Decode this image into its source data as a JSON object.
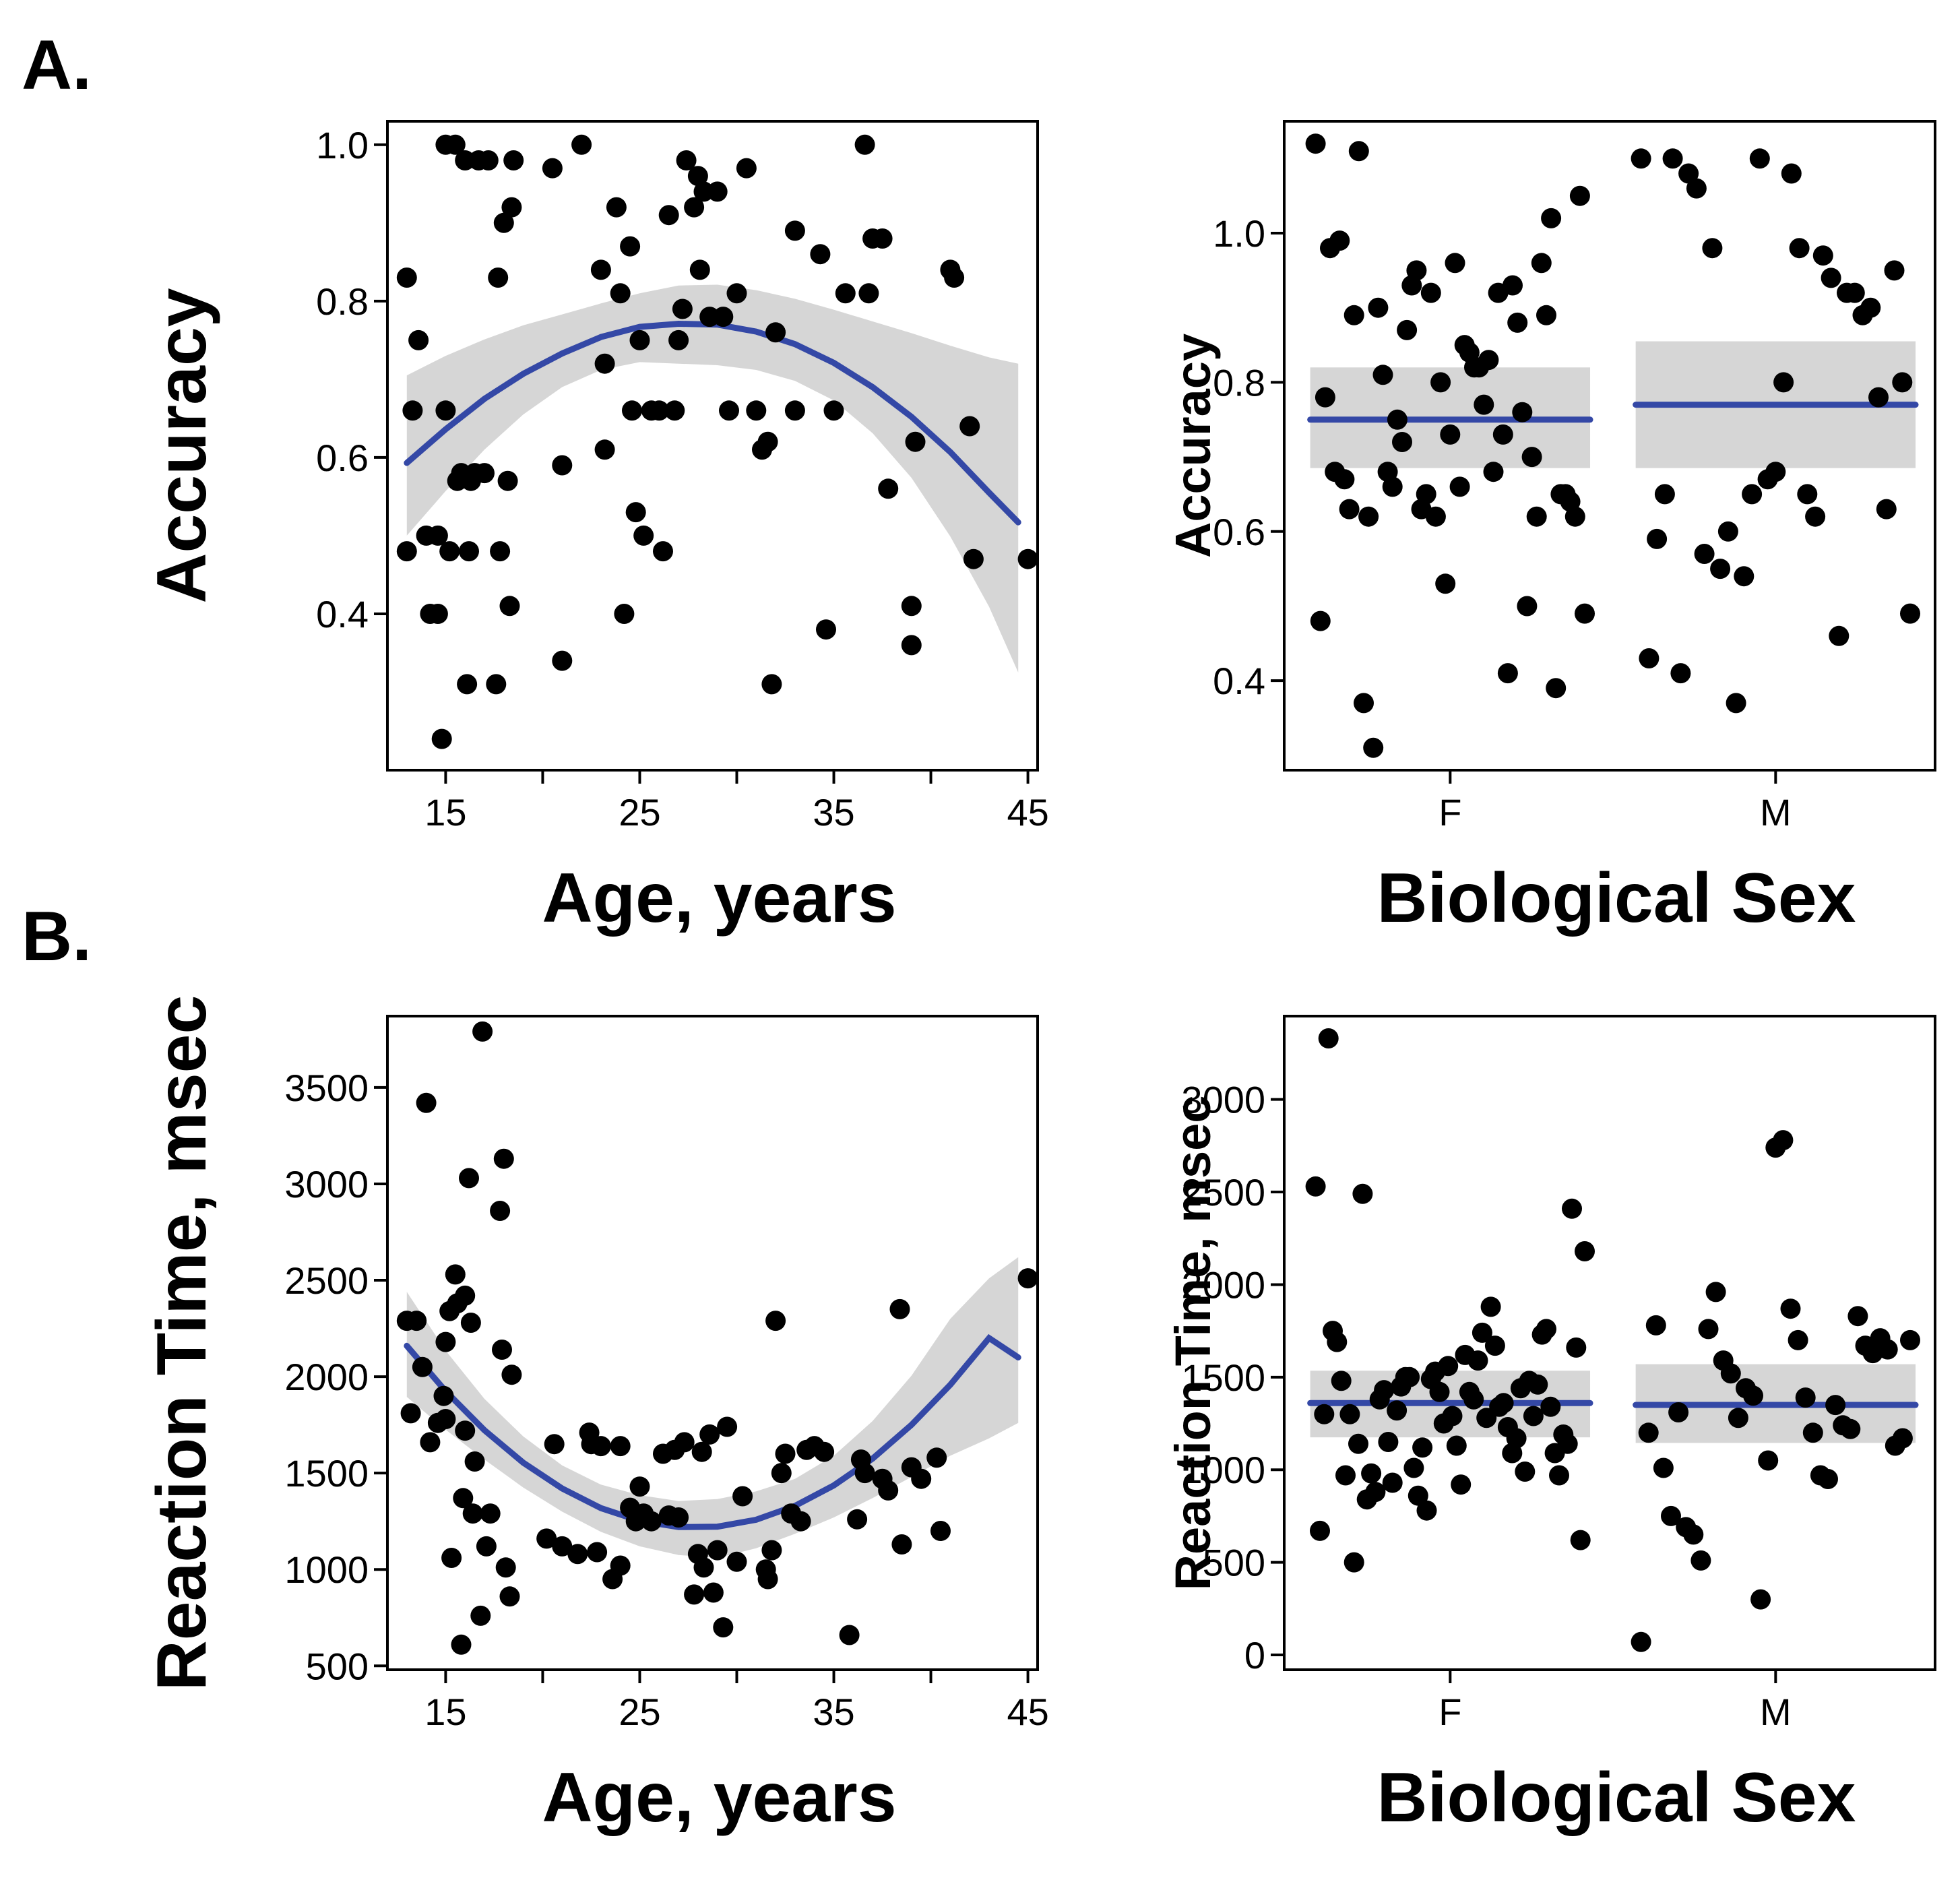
{
  "panel_labels": [
    "A.",
    "B."
  ],
  "chart_data": [
    {
      "id": "acc-age",
      "type": "scatter",
      "title": "",
      "xlabel": "Age, years",
      "ylabel": "Accuracy",
      "xlim": [
        12,
        45.5
      ],
      "ylim": [
        0.2,
        1.03
      ],
      "x_ticks": [
        15,
        25,
        35,
        45
      ],
      "x_minor_ticks": [
        20,
        30,
        40
      ],
      "y_ticks": [
        0.4,
        0.6,
        0.8,
        1.0
      ],
      "y_tick_labels": [
        "0.4",
        "0.6",
        "0.8",
        "1.0"
      ],
      "fit": {
        "type": "quadratic",
        "x": [
          13,
          15,
          17,
          19,
          21,
          23,
          25,
          27,
          29,
          31,
          33,
          35,
          37,
          39,
          41,
          43,
          44.5
        ],
        "y": [
          0.593,
          0.636,
          0.675,
          0.707,
          0.733,
          0.754,
          0.767,
          0.771,
          0.77,
          0.761,
          0.745,
          0.721,
          0.69,
          0.652,
          0.607,
          0.555,
          0.517
        ],
        "lower": [
          0.5,
          0.557,
          0.61,
          0.655,
          0.69,
          0.712,
          0.722,
          0.72,
          0.718,
          0.712,
          0.698,
          0.673,
          0.631,
          0.574,
          0.499,
          0.409,
          0.325
        ],
        "upper": [
          0.705,
          0.73,
          0.751,
          0.769,
          0.783,
          0.797,
          0.81,
          0.82,
          0.821,
          0.814,
          0.803,
          0.789,
          0.774,
          0.759,
          0.743,
          0.728,
          0.72
        ]
      },
      "points": [
        [
          13,
          0.83
        ],
        [
          13,
          0.48
        ],
        [
          13.3,
          0.66
        ],
        [
          13.6,
          0.75
        ],
        [
          14,
          0.5
        ],
        [
          14.2,
          0.4
        ],
        [
          14.6,
          0.5
        ],
        [
          14.6,
          0.4
        ],
        [
          14.8,
          0.24
        ],
        [
          15,
          1.0
        ],
        [
          15,
          0.66
        ],
        [
          15.2,
          0.48
        ],
        [
          15.5,
          1.0
        ],
        [
          15.6,
          0.57
        ],
        [
          15.8,
          0.58
        ],
        [
          16,
          0.98
        ],
        [
          16.1,
          0.31
        ],
        [
          16.2,
          0.48
        ],
        [
          16.3,
          0.57
        ],
        [
          16.5,
          0.58
        ],
        [
          16.7,
          0.98
        ],
        [
          17,
          0.58
        ],
        [
          17.2,
          0.98
        ],
        [
          17.6,
          0.31
        ],
        [
          17.7,
          0.83
        ],
        [
          17.8,
          0.48
        ],
        [
          18,
          0.9
        ],
        [
          18.2,
          0.57
        ],
        [
          18.3,
          0.41
        ],
        [
          18.4,
          0.92
        ],
        [
          18.5,
          0.98
        ],
        [
          20.5,
          0.97
        ],
        [
          21,
          0.34
        ],
        [
          21,
          0.59
        ],
        [
          22,
          1.0
        ],
        [
          23,
          0.84
        ],
        [
          23.2,
          0.72
        ],
        [
          23.2,
          0.61
        ],
        [
          23.8,
          0.92
        ],
        [
          24,
          0.81
        ],
        [
          24.2,
          0.4
        ],
        [
          24.5,
          0.87
        ],
        [
          24.6,
          0.66
        ],
        [
          24.8,
          0.53
        ],
        [
          25,
          0.75
        ],
        [
          25.2,
          0.5
        ],
        [
          25.6,
          0.66
        ],
        [
          26,
          0.66
        ],
        [
          26.2,
          0.48
        ],
        [
          26.5,
          0.91
        ],
        [
          26.8,
          0.66
        ],
        [
          27,
          0.75
        ],
        [
          27.2,
          0.79
        ],
        [
          27.4,
          0.98
        ],
        [
          27.8,
          0.92
        ],
        [
          28,
          0.96
        ],
        [
          28.1,
          0.84
        ],
        [
          28.3,
          0.94
        ],
        [
          28.6,
          0.78
        ],
        [
          29,
          0.94
        ],
        [
          29.3,
          0.78
        ],
        [
          29.6,
          0.66
        ],
        [
          30,
          0.81
        ],
        [
          30.5,
          0.97
        ],
        [
          31,
          0.66
        ],
        [
          31.3,
          0.61
        ],
        [
          31.6,
          0.62
        ],
        [
          31.8,
          0.31
        ],
        [
          32,
          0.76
        ],
        [
          33,
          0.89
        ],
        [
          33,
          0.66
        ],
        [
          34.3,
          0.86
        ],
        [
          34.6,
          0.38
        ],
        [
          35,
          0.66
        ],
        [
          35.6,
          0.81
        ],
        [
          36.6,
          1.0
        ],
        [
          36.8,
          0.81
        ],
        [
          37,
          0.88
        ],
        [
          37.5,
          0.88
        ],
        [
          37.8,
          0.56
        ],
        [
          39,
          0.41
        ],
        [
          39,
          0.36
        ],
        [
          39.2,
          0.62
        ],
        [
          41,
          0.84
        ],
        [
          41.2,
          0.83
        ],
        [
          42,
          0.64
        ],
        [
          42.2,
          0.47
        ],
        [
          45,
          0.47
        ]
      ]
    },
    {
      "id": "acc-sex",
      "type": "scatter",
      "title": "",
      "xlabel": "Biological Sex",
      "ylabel": "Accuracy",
      "categories": [
        "F",
        "M"
      ],
      "ylim": [
        0.28,
        1.15
      ],
      "y_ticks": [
        0.4,
        0.6,
        0.8,
        1.0
      ],
      "y_tick_labels": [
        "0.4",
        "0.6",
        "0.8",
        "1.0"
      ],
      "group_means": [
        {
          "category": "F",
          "mean": 0.75,
          "lower": 0.685,
          "upper": 0.82
        },
        {
          "category": "M",
          "mean": 0.77,
          "lower": 0.685,
          "upper": 0.855
        }
      ],
      "points": [
        {
          "category": "F",
          "values": [
            1.12,
            0.48,
            0.78,
            0.98,
            0.68,
            0.99,
            0.67,
            0.63,
            0.89,
            1.11,
            0.37,
            0.62,
            0.31,
            0.9,
            0.81,
            0.68,
            0.66,
            0.75,
            0.72,
            0.87,
            0.93,
            0.95,
            0.63,
            0.65,
            0.92,
            0.62,
            0.8,
            0.53,
            0.73,
            0.96,
            0.66,
            0.85,
            0.84,
            0.82,
            0.82,
            0.77,
            0.83,
            0.68,
            0.92,
            0.73,
            0.41,
            0.93,
            0.88,
            0.76,
            0.5,
            0.7,
            0.62,
            0.96,
            0.89,
            1.02,
            0.39,
            0.65,
            0.65,
            0.64,
            0.62,
            1.05,
            0.49
          ]
        },
        {
          "category": "M",
          "values": [
            1.1,
            0.43,
            0.59,
            0.65,
            1.1,
            0.41,
            1.08,
            1.06,
            0.57,
            0.98,
            0.55,
            0.6,
            0.37,
            0.54,
            0.65,
            1.1,
            0.67,
            0.68,
            0.8,
            1.08,
            0.98,
            0.65,
            0.62,
            0.97,
            0.94,
            0.46,
            0.92,
            0.92,
            0.89,
            0.9,
            0.78,
            0.63,
            0.95,
            0.8,
            0.49
          ]
        }
      ]
    },
    {
      "id": "rt-age",
      "type": "scatter",
      "title": "",
      "xlabel": "Age, years",
      "ylabel": "Reaction Time, msec",
      "xlim": [
        12,
        45.5
      ],
      "ylim": [
        480,
        3870
      ],
      "x_ticks": [
        15,
        25,
        35,
        45
      ],
      "x_minor_ticks": [
        20,
        30,
        40
      ],
      "y_ticks": [
        500,
        1000,
        1500,
        2000,
        2500,
        3000,
        3500
      ],
      "y_tick_labels": [
        "500",
        "1000",
        "1500",
        "2000",
        "2500",
        "3000",
        "3500"
      ],
      "fit": {
        "type": "quadratic",
        "x": [
          13,
          15,
          17,
          19,
          21,
          23,
          25,
          27,
          29,
          31,
          33,
          35,
          37,
          39,
          41,
          43,
          44.5
        ],
        "y": [
          2160,
          1925,
          1722,
          1554,
          1420,
          1318,
          1252,
          1220,
          1222,
          1258,
          1330,
          1436,
          1575,
          1750,
          1958,
          2200,
          2100
        ],
        "lower": [
          1895,
          1725,
          1570,
          1425,
          1300,
          1195,
          1120,
          1075,
          1060,
          1110,
          1185,
          1270,
          1370,
          1480,
          1590,
          1680,
          1760
        ],
        "upper": [
          2440,
          2135,
          1885,
          1690,
          1540,
          1440,
          1385,
          1355,
          1365,
          1405,
          1470,
          1590,
          1770,
          2005,
          2300,
          2510,
          2620
        ]
      },
      "points": [
        [
          13,
          2290
        ],
        [
          13.2,
          1810
        ],
        [
          13.5,
          2290
        ],
        [
          13.8,
          2050
        ],
        [
          14,
          3420
        ],
        [
          14.2,
          1660
        ],
        [
          14.6,
          1760
        ],
        [
          14.9,
          1900
        ],
        [
          15,
          2180
        ],
        [
          15,
          1780
        ],
        [
          15.2,
          2340
        ],
        [
          15.3,
          1060
        ],
        [
          15.5,
          2530
        ],
        [
          15.6,
          2380
        ],
        [
          15.8,
          610
        ],
        [
          15.9,
          1370
        ],
        [
          16,
          2420
        ],
        [
          16,
          1720
        ],
        [
          16.2,
          3030
        ],
        [
          16.3,
          2280
        ],
        [
          16.4,
          1290
        ],
        [
          16.5,
          1560
        ],
        [
          16.8,
          760
        ],
        [
          16.9,
          3790
        ],
        [
          17.1,
          1120
        ],
        [
          17.3,
          1290
        ],
        [
          17.8,
          2860
        ],
        [
          17.9,
          2140
        ],
        [
          18,
          3130
        ],
        [
          18.1,
          1010
        ],
        [
          18.3,
          860
        ],
        [
          18.4,
          2010
        ],
        [
          20.2,
          1160
        ],
        [
          20.6,
          1650
        ],
        [
          21,
          1120
        ],
        [
          21.8,
          1080
        ],
        [
          22.4,
          1710
        ],
        [
          22.5,
          1650
        ],
        [
          22.8,
          1090
        ],
        [
          23,
          1640
        ],
        [
          23.6,
          950
        ],
        [
          24,
          1020
        ],
        [
          24,
          1640
        ],
        [
          24.5,
          1320
        ],
        [
          24.8,
          1250
        ],
        [
          25,
          1430
        ],
        [
          25.2,
          1290
        ],
        [
          25.6,
          1250
        ],
        [
          26.2,
          1600
        ],
        [
          26.5,
          1280
        ],
        [
          26.8,
          1620
        ],
        [
          27,
          1270
        ],
        [
          27.3,
          1660
        ],
        [
          27.8,
          870
        ],
        [
          28,
          1080
        ],
        [
          28.2,
          1610
        ],
        [
          28.3,
          1010
        ],
        [
          28.6,
          1700
        ],
        [
          28.8,
          880
        ],
        [
          29,
          1100
        ],
        [
          29.3,
          700
        ],
        [
          29.5,
          1740
        ],
        [
          30,
          1040
        ],
        [
          30.3,
          1380
        ],
        [
          31.5,
          1000
        ],
        [
          31.6,
          950
        ],
        [
          31.8,
          1100
        ],
        [
          32,
          2290
        ],
        [
          32.3,
          1500
        ],
        [
          32.5,
          1600
        ],
        [
          32.8,
          1290
        ],
        [
          33.3,
          1250
        ],
        [
          33.6,
          1620
        ],
        [
          34,
          1640
        ],
        [
          34.5,
          1610
        ],
        [
          35.8,
          660
        ],
        [
          36.2,
          1260
        ],
        [
          36.4,
          1570
        ],
        [
          36.6,
          1500
        ],
        [
          37.5,
          1470
        ],
        [
          37.8,
          1410
        ],
        [
          38.4,
          2350
        ],
        [
          38.5,
          1130
        ],
        [
          39,
          1530
        ],
        [
          39.5,
          1470
        ],
        [
          40.3,
          1580
        ],
        [
          40.5,
          1200
        ],
        [
          45,
          2510
        ]
      ]
    },
    {
      "id": "rt-sex",
      "type": "scatter",
      "title": "",
      "xlabel": "Biological Sex",
      "ylabel": "Reaction Time, msec",
      "categories": [
        "F",
        "M"
      ],
      "ylim": [
        -80,
        3450
      ],
      "y_ticks": [
        0,
        500,
        1000,
        1500,
        2000,
        2500,
        3000
      ],
      "y_tick_labels": [
        "0",
        "500",
        "1000",
        "1500",
        "2000",
        "2500",
        "3000"
      ],
      "group_means": [
        {
          "category": "F",
          "mean": 1360,
          "lower": 1175,
          "upper": 1535
        },
        {
          "category": "M",
          "mean": 1350,
          "lower": 1145,
          "upper": 1570
        }
      ],
      "points": [
        {
          "category": "F",
          "values": [
            2530,
            670,
            1300,
            3330,
            1750,
            1690,
            1480,
            970,
            1300,
            500,
            1140,
            2490,
            840,
            980,
            880,
            1380,
            1430,
            1150,
            930,
            1320,
            1450,
            1500,
            1500,
            1010,
            860,
            1120,
            780,
            1490,
            1530,
            1420,
            1250,
            1560,
            1290,
            1130,
            920,
            1620,
            1420,
            1380,
            1590,
            1740,
            1280,
            1880,
            1670,
            1340,
            1360,
            1230,
            1090,
            1170,
            1440,
            990,
            1480,
            1290,
            1460,
            1730,
            1760,
            1340,
            1090,
            970,
            1190,
            1140,
            2410,
            1660,
            620,
            2180
          ]
        },
        {
          "category": "M",
          "values": [
            70,
            1200,
            1780,
            1010,
            750,
            1310,
            690,
            650,
            510,
            1760,
            1960,
            1590,
            1520,
            1280,
            1440,
            1400,
            300,
            1050,
            2740,
            2780,
            1870,
            1700,
            1390,
            1200,
            970,
            950,
            1350,
            1240,
            1220,
            1830,
            1670,
            1630,
            1710,
            1650,
            1130,
            1170,
            1700
          ]
        }
      ]
    }
  ]
}
